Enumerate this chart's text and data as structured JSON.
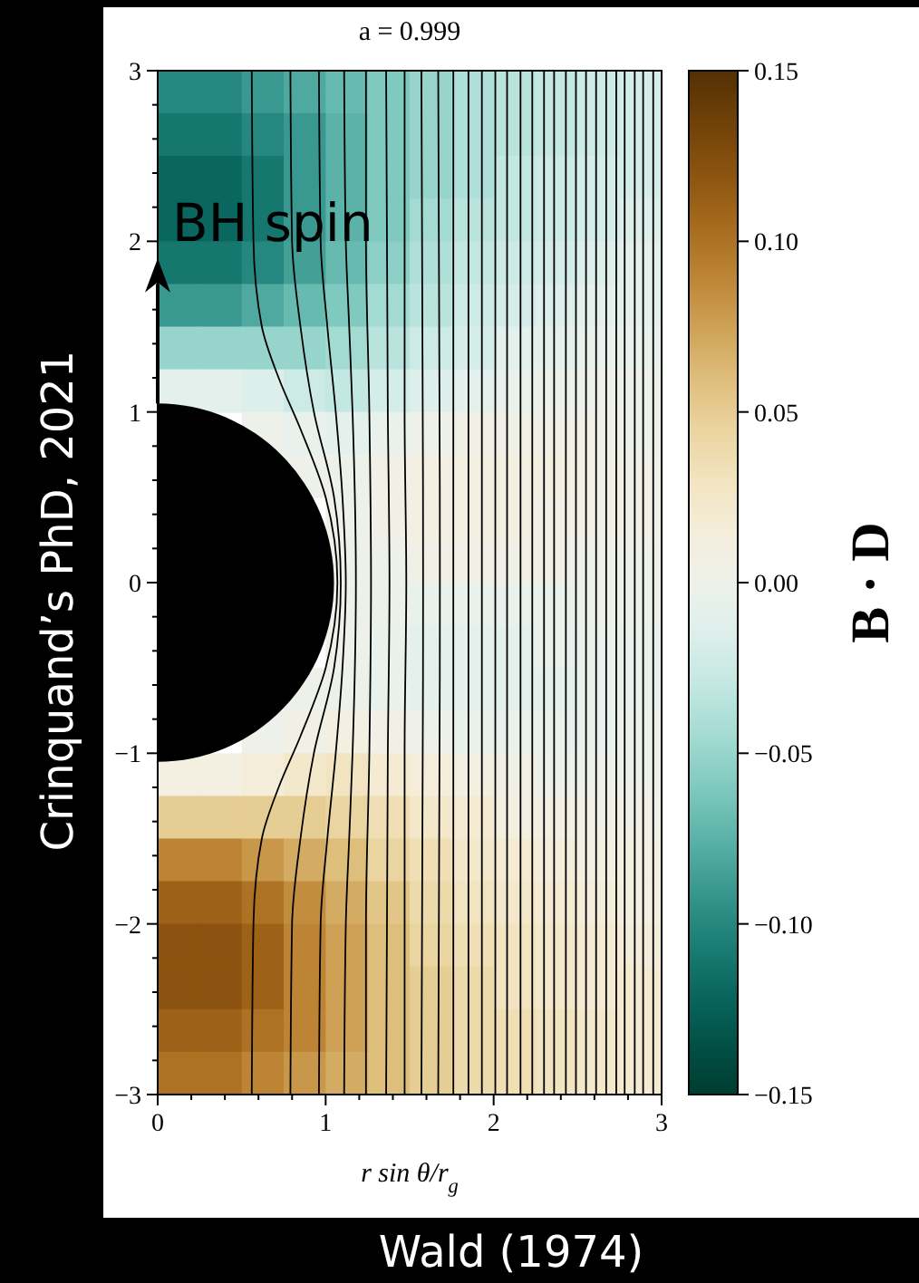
{
  "chart_data": {
    "type": "heatmap",
    "title": "a = 0.999",
    "xlabel": "r sin θ/r$_{g}$",
    "clabel": "B · D",
    "annotations": [
      "BH spin",
      "Crinquand’s PhD, 2021",
      "Wald (1974)"
    ],
    "xlim": [
      0,
      3
    ],
    "ylim": [
      -3,
      3
    ],
    "xticks": [
      0,
      {
        "value": 0.2,
        "label": null
      },
      {
        "value": 0.4,
        "label": null
      },
      {
        "value": 0.6,
        "label": null
      },
      {
        "value": 0.8,
        "label": null
      },
      1,
      {
        "value": 1.2,
        "label": null
      },
      {
        "value": 1.4,
        "label": null
      },
      {
        "value": 1.6,
        "label": null
      },
      {
        "value": 1.8,
        "label": null
      },
      2,
      {
        "value": 2.2,
        "label": null
      },
      {
        "value": 2.4,
        "label": null
      },
      {
        "value": 2.6,
        "label": null
      },
      {
        "value": 2.8,
        "label": null
      },
      3
    ],
    "yticks": [
      {
        "value": -3,
        "label": "−3"
      },
      {
        "value": -2.8,
        "label": null
      },
      {
        "value": -2.6,
        "label": null
      },
      {
        "value": -2.4,
        "label": null
      },
      {
        "value": -2.2,
        "label": null
      },
      {
        "value": -2,
        "label": "−2"
      },
      {
        "value": -1.8,
        "label": null
      },
      {
        "value": -1.6,
        "label": null
      },
      {
        "value": -1.4,
        "label": null
      },
      {
        "value": -1.2,
        "label": null
      },
      {
        "value": -1,
        "label": "−1"
      },
      {
        "value": -0.8,
        "label": null
      },
      {
        "value": -0.6,
        "label": null
      },
      {
        "value": -0.4,
        "label": null
      },
      {
        "value": -0.2,
        "label": null
      },
      0,
      {
        "value": 0.2,
        "label": null
      },
      {
        "value": 0.4,
        "label": null
      },
      {
        "value": 0.6,
        "label": null
      },
      {
        "value": 0.8,
        "label": null
      },
      1,
      {
        "value": 1.2,
        "label": null
      },
      {
        "value": 1.4,
        "label": null
      },
      {
        "value": 1.6,
        "label": null
      },
      {
        "value": 1.8,
        "label": null
      },
      2,
      {
        "value": 2.2,
        "label": null
      },
      {
        "value": 2.4,
        "label": null
      },
      {
        "value": 2.6,
        "label": null
      },
      {
        "value": 2.8,
        "label": null
      },
      3
    ],
    "clim": [
      -0.15,
      0.15
    ],
    "cticks": [
      {
        "value": -0.15,
        "label": "−0.15"
      },
      {
        "value": -0.1,
        "label": "−0.10"
      },
      {
        "value": -0.05,
        "label": "−0.05"
      },
      {
        "value": 0,
        "label": "0.00"
      },
      {
        "value": 0.05,
        "label": "0.05"
      },
      {
        "value": 0.1,
        "label": "0.10"
      },
      {
        "value": 0.15,
        "label": "0.15"
      }
    ],
    "cells": [
      [
        -0.1,
        -0.1,
        -0.09,
        -0.08,
        -0.07,
        -0.06,
        -0.05,
        -0.04,
        -0.035,
        -0.03,
        -0.025,
        -0.02
      ],
      [
        -0.11,
        -0.11,
        -0.1,
        -0.09,
        -0.075,
        -0.06,
        -0.05,
        -0.04,
        -0.035,
        -0.03,
        -0.025,
        -0.02
      ],
      [
        -0.12,
        -0.12,
        -0.11,
        -0.09,
        -0.075,
        -0.06,
        -0.05,
        -0.04,
        -0.03,
        -0.025,
        -0.02,
        -0.02
      ],
      [
        -0.12,
        -0.12,
        -0.11,
        -0.09,
        -0.075,
        -0.06,
        -0.045,
        -0.035,
        -0.03,
        -0.025,
        -0.02,
        -0.015
      ],
      [
        -0.11,
        -0.11,
        -0.1,
        -0.085,
        -0.07,
        -0.055,
        -0.04,
        -0.03,
        -0.025,
        -0.02,
        -0.015,
        -0.01
      ],
      [
        -0.09,
        -0.09,
        -0.08,
        -0.07,
        -0.06,
        -0.045,
        -0.035,
        -0.025,
        -0.02,
        -0.015,
        -0.01,
        -0.01
      ],
      [
        -0.05,
        -0.05,
        -0.05,
        -0.05,
        -0.045,
        -0.035,
        -0.025,
        -0.02,
        -0.01,
        -0.01,
        -0.005,
        -0.005
      ],
      [
        -0.01,
        -0.01,
        -0.015,
        -0.025,
        -0.03,
        -0.02,
        -0.015,
        -0.01,
        -0.005,
        0,
        0,
        0
      ],
      [
        null,
        null,
        0,
        -0.005,
        -0.01,
        -0.005,
        0,
        0.005,
        0.005,
        0.005,
        0.005,
        0
      ],
      [
        null,
        null,
        null,
        0,
        0,
        0.005,
        0.01,
        0.01,
        0.01,
        0.01,
        0.005,
        0.005
      ],
      [
        null,
        null,
        null,
        null,
        0,
        0.005,
        0.01,
        0.01,
        0.01,
        0.005,
        0.005,
        0.005
      ],
      [
        null,
        null,
        null,
        null,
        0,
        0,
        0.005,
        0.005,
        0.005,
        0.005,
        0,
        0
      ],
      [
        null,
        null,
        null,
        null,
        0,
        0,
        -0.005,
        -0.005,
        -0.005,
        -0.005,
        0,
        0
      ],
      [
        null,
        null,
        null,
        null,
        0,
        -0.005,
        -0.01,
        -0.01,
        -0.01,
        -0.005,
        -0.005,
        -0.005
      ],
      [
        null,
        null,
        null,
        0,
        0,
        -0.005,
        -0.01,
        -0.01,
        -0.01,
        -0.01,
        -0.005,
        -0.005
      ],
      [
        null,
        null,
        0,
        0.005,
        0.01,
        0.005,
        0,
        -0.005,
        -0.005,
        -0.005,
        -0.005,
        0
      ],
      [
        0.01,
        0.01,
        0.015,
        0.025,
        0.03,
        0.02,
        0.015,
        0.01,
        0.005,
        0,
        0,
        0
      ],
      [
        0.05,
        0.05,
        0.05,
        0.05,
        0.045,
        0.035,
        0.025,
        0.02,
        0.01,
        0.01,
        0.005,
        0.005
      ],
      [
        0.09,
        0.09,
        0.08,
        0.07,
        0.06,
        0.045,
        0.035,
        0.025,
        0.02,
        0.015,
        0.01,
        0.01
      ],
      [
        0.11,
        0.11,
        0.1,
        0.085,
        0.07,
        0.055,
        0.04,
        0.03,
        0.025,
        0.02,
        0.015,
        0.01
      ],
      [
        0.12,
        0.12,
        0.11,
        0.09,
        0.075,
        0.06,
        0.045,
        0.035,
        0.03,
        0.025,
        0.02,
        0.015
      ],
      [
        0.12,
        0.12,
        0.11,
        0.09,
        0.075,
        0.06,
        0.05,
        0.04,
        0.03,
        0.025,
        0.02,
        0.02
      ],
      [
        0.11,
        0.11,
        0.1,
        0.09,
        0.075,
        0.06,
        0.05,
        0.04,
        0.035,
        0.03,
        0.025,
        0.02
      ],
      [
        0.1,
        0.1,
        0.09,
        0.08,
        0.07,
        0.06,
        0.05,
        0.04,
        0.035,
        0.03,
        0.025,
        0.02
      ]
    ],
    "series": [
      {
        "type": "line",
        "color": "#000000",
        "x": [
          0.56,
          0.57,
          0.62,
          0.72,
          0.85,
          1.0,
          1.07,
          1.0,
          0.85,
          0.72,
          0.62,
          0.57,
          0.56
        ],
        "values": [
          -3,
          -2,
          -1.5,
          -1.2,
          -0.9,
          -0.5,
          0,
          0.5,
          0.9,
          1.2,
          1.5,
          2,
          3
        ]
      },
      {
        "type": "line",
        "color": "#000000",
        "x": [
          0.79,
          0.8,
          0.85,
          0.93,
          1.05,
          1.09,
          1.05,
          0.93,
          0.85,
          0.8,
          0.79
        ],
        "values": [
          -3,
          -2,
          -1.5,
          -1,
          -0.5,
          0,
          0.5,
          1,
          1.5,
          2,
          3
        ]
      },
      {
        "type": "line",
        "color": "#000000",
        "x": [
          0.96,
          0.97,
          1.01,
          1.06,
          1.1,
          1.12,
          1.1,
          1.06,
          1.01,
          0.97,
          0.96
        ],
        "values": [
          -3,
          -2,
          -1.5,
          -1,
          -0.5,
          0,
          0.5,
          1,
          1.5,
          2,
          3
        ]
      },
      {
        "type": "line",
        "color": "#000000",
        "x": [
          1.11,
          1.12,
          1.14,
          1.16,
          1.18,
          1.16,
          1.14,
          1.12,
          1.11
        ],
        "values": [
          -3,
          -2,
          -1.5,
          -1,
          0,
          1,
          1.5,
          2,
          3
        ]
      },
      {
        "type": "line",
        "color": "#000000",
        "x": [
          1.24,
          1.24,
          1.26,
          1.27,
          1.26,
          1.24,
          1.24
        ],
        "values": [
          -3,
          -2,
          -1,
          0,
          1,
          2,
          3
        ]
      },
      {
        "type": "line",
        "color": "#000000",
        "x": [
          1.36,
          1.37,
          1.38,
          1.37,
          1.36
        ],
        "values": [
          -3,
          -1,
          0,
          1,
          3
        ]
      },
      {
        "type": "line",
        "color": "#000000",
        "x": [
          1.47,
          1.47,
          1.48,
          1.47,
          1.47
        ],
        "values": [
          -3,
          -1,
          0,
          1,
          3
        ]
      },
      {
        "type": "line",
        "color": "#000000",
        "x": [
          1.57,
          1.58,
          1.57
        ],
        "values": [
          -3,
          0,
          3
        ]
      },
      {
        "type": "line",
        "color": "#000000",
        "x": [
          1.67,
          1.68,
          1.67
        ],
        "values": [
          -3,
          0,
          3
        ]
      },
      {
        "type": "line",
        "color": "#000000",
        "x": [
          1.76,
          1.76,
          1.76
        ],
        "values": [
          -3,
          0,
          3
        ]
      },
      {
        "type": "line",
        "color": "#000000",
        "x": [
          1.85,
          1.85,
          1.85
        ],
        "values": [
          -3,
          0,
          3
        ]
      },
      {
        "type": "line",
        "color": "#000000",
        "x": [
          1.93,
          1.93,
          1.93
        ],
        "values": [
          -3,
          0,
          3
        ]
      },
      {
        "type": "line",
        "color": "#000000",
        "x": [
          2.01,
          2.01,
          2.01
        ],
        "values": [
          -3,
          0,
          3
        ]
      },
      {
        "type": "line",
        "color": "#000000",
        "x": [
          2.08,
          2.08,
          2.08
        ],
        "values": [
          -3,
          0,
          3
        ]
      },
      {
        "type": "line",
        "color": "#000000",
        "x": [
          2.16,
          2.16,
          2.16
        ],
        "values": [
          -3,
          0,
          3
        ]
      },
      {
        "type": "line",
        "color": "#000000",
        "x": [
          2.23,
          2.23,
          2.23
        ],
        "values": [
          -3,
          0,
          3
        ]
      },
      {
        "type": "line",
        "color": "#000000",
        "x": [
          2.3,
          2.3,
          2.3
        ],
        "values": [
          -3,
          0,
          3
        ]
      },
      {
        "type": "line",
        "color": "#000000",
        "x": [
          2.36,
          2.36,
          2.36
        ],
        "values": [
          -3,
          0,
          3
        ]
      },
      {
        "type": "line",
        "color": "#000000",
        "x": [
          2.43,
          2.43,
          2.43
        ],
        "values": [
          -3,
          0,
          3
        ]
      },
      {
        "type": "line",
        "color": "#000000",
        "x": [
          2.49,
          2.49,
          2.49
        ],
        "values": [
          -3,
          0,
          3
        ]
      },
      {
        "type": "line",
        "color": "#000000",
        "x": [
          2.55,
          2.55,
          2.55
        ],
        "values": [
          -3,
          0,
          3
        ]
      },
      {
        "type": "line",
        "color": "#000000",
        "x": [
          2.61,
          2.61,
          2.61
        ],
        "values": [
          -3,
          0,
          3
        ]
      },
      {
        "type": "line",
        "color": "#000000",
        "x": [
          2.67,
          2.67,
          2.67
        ],
        "values": [
          -3,
          0,
          3
        ]
      },
      {
        "type": "line",
        "color": "#000000",
        "x": [
          2.73,
          2.73,
          2.73
        ],
        "values": [
          -3,
          0,
          3
        ]
      },
      {
        "type": "line",
        "color": "#000000",
        "x": [
          2.78,
          2.78,
          2.78
        ],
        "values": [
          -3,
          0,
          3
        ]
      },
      {
        "type": "line",
        "color": "#000000",
        "x": [
          2.84,
          2.84,
          2.84
        ],
        "values": [
          -3,
          0,
          3
        ]
      },
      {
        "type": "line",
        "color": "#000000",
        "x": [
          2.89,
          2.89,
          2.89
        ],
        "values": [
          -3,
          0,
          3
        ]
      },
      {
        "type": "line",
        "color": "#000000",
        "x": [
          2.95,
          2.95,
          2.95
        ],
        "values": [
          -3,
          0,
          3
        ]
      }
    ]
  }
}
